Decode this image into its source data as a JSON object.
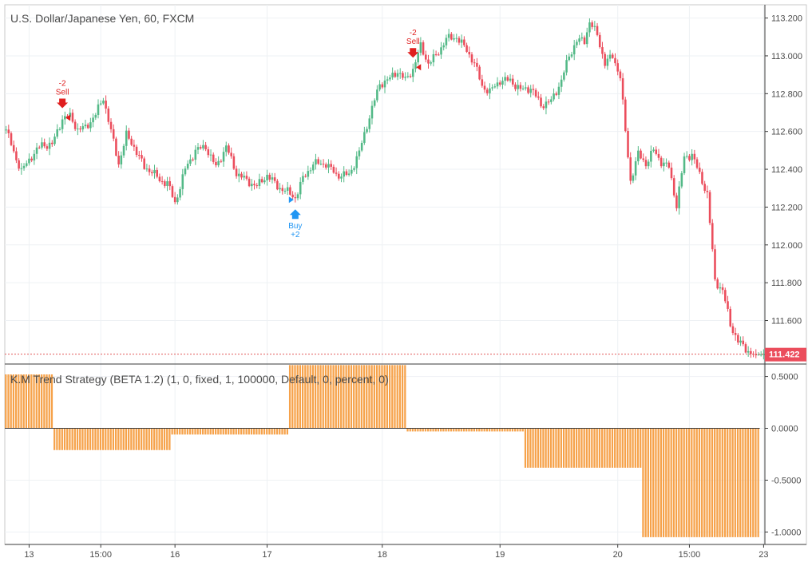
{
  "main_pane": {
    "title": "U.S. Dollar/Japanese Yen, 60, FXCM",
    "last_price_label": "111.422",
    "colors": {
      "up": "#53b987",
      "down": "#eb4d5c",
      "sell": "#e01f1f",
      "buy": "#2196f3"
    }
  },
  "strategy_pane": {
    "title": "K.M Trend Strategy (BETA 1.2) (1, 0, fixed, 1, 100000, Default, 0, percent, 0)",
    "bar_color": "#f6a24a"
  },
  "time_axis": {
    "labels": [
      {
        "text": "13",
        "bar": 9
      },
      {
        "text": "15:00",
        "bar": 37
      },
      {
        "text": "16",
        "bar": 66
      },
      {
        "text": "17",
        "bar": 102
      },
      {
        "text": "18",
        "bar": 147
      },
      {
        "text": "19",
        "bar": 193
      },
      {
        "text": "20",
        "bar": 239
      },
      {
        "text": "15:00",
        "bar": 267
      },
      {
        "text": "23",
        "bar": 296
      }
    ]
  },
  "signals": [
    {
      "type": "sell",
      "label_top": "-2",
      "label_bottom": "Sell",
      "bar": 22
    },
    {
      "type": "buy",
      "label_top": "Buy",
      "label_bottom": "+2",
      "bar": 113
    },
    {
      "type": "sell",
      "label_top": "-2",
      "label_bottom": "Sell",
      "bar": 159
    }
  ],
  "chart_data": [
    {
      "type": "candlestick",
      "title": "U.S. Dollar/Japanese Yen, 60, FXCM",
      "ylim": [
        111.37,
        113.27
      ],
      "y_ticks": [
        "113.200",
        "113.000",
        "112.800",
        "112.600",
        "112.400",
        "112.200",
        "112.000",
        "111.800",
        "111.600"
      ],
      "last_price": 111.422,
      "ohlc_keys": [
        "open",
        "high",
        "low",
        "close"
      ],
      "anchors": [
        [
          0,
          112.61
        ],
        [
          3,
          112.49
        ],
        [
          6,
          112.39
        ],
        [
          10,
          112.47
        ],
        [
          14,
          112.53
        ],
        [
          18,
          112.53
        ],
        [
          22,
          112.67
        ],
        [
          25,
          112.68
        ],
        [
          28,
          112.61
        ],
        [
          31,
          112.62
        ],
        [
          35,
          112.69
        ],
        [
          38,
          112.78
        ],
        [
          41,
          112.6
        ],
        [
          44,
          112.43
        ],
        [
          47,
          112.58
        ],
        [
          50,
          112.52
        ],
        [
          54,
          112.41
        ],
        [
          57,
          112.39
        ],
        [
          60,
          112.34
        ],
        [
          63,
          112.33
        ],
        [
          66,
          112.22
        ],
        [
          70,
          112.4
        ],
        [
          74,
          112.5
        ],
        [
          78,
          112.52
        ],
        [
          82,
          112.41
        ],
        [
          86,
          112.52
        ],
        [
          90,
          112.38
        ],
        [
          94,
          112.34
        ],
        [
          98,
          112.31
        ],
        [
          102,
          112.37
        ],
        [
          106,
          112.31
        ],
        [
          110,
          112.28
        ],
        [
          113,
          112.25
        ],
        [
          116,
          112.35
        ],
        [
          120,
          112.43
        ],
        [
          125,
          112.43
        ],
        [
          129,
          112.37
        ],
        [
          134,
          112.37
        ],
        [
          138,
          112.49
        ],
        [
          142,
          112.68
        ],
        [
          146,
          112.85
        ],
        [
          150,
          112.88
        ],
        [
          153,
          112.92
        ],
        [
          156,
          112.87
        ],
        [
          159,
          112.93
        ],
        [
          162,
          113.05
        ],
        [
          165,
          112.96
        ],
        [
          168,
          113.0
        ],
        [
          172,
          113.09
        ],
        [
          176,
          113.1
        ],
        [
          180,
          113.03
        ],
        [
          183,
          112.96
        ],
        [
          186,
          112.84
        ],
        [
          189,
          112.81
        ],
        [
          193,
          112.87
        ],
        [
          197,
          112.87
        ],
        [
          201,
          112.82
        ],
        [
          205,
          112.83
        ],
        [
          209,
          112.74
        ],
        [
          213,
          112.76
        ],
        [
          217,
          112.87
        ],
        [
          220,
          113.0
        ],
        [
          223,
          113.08
        ],
        [
          226,
          113.08
        ],
        [
          228,
          113.18
        ],
        [
          231,
          113.11
        ],
        [
          234,
          112.96
        ],
        [
          237,
          113.0
        ],
        [
          240,
          112.89
        ],
        [
          242,
          112.6
        ],
        [
          244,
          112.34
        ],
        [
          247,
          112.48
        ],
        [
          250,
          112.43
        ],
        [
          253,
          112.5
        ],
        [
          256,
          112.44
        ],
        [
          259,
          112.41
        ],
        [
          262,
          112.21
        ],
        [
          265,
          112.46
        ],
        [
          268,
          112.48
        ],
        [
          271,
          112.37
        ],
        [
          274,
          112.27
        ],
        [
          277,
          111.81
        ],
        [
          280,
          111.76
        ],
        [
          283,
          111.58
        ],
        [
          286,
          111.49
        ],
        [
          289,
          111.45
        ],
        [
          292,
          111.42
        ]
      ]
    },
    {
      "type": "bar",
      "title": "K.M Trend Strategy (BETA 1.2) (1, 0, fixed, 1, 100000, Default, 0, percent, 0)",
      "ylim": [
        -1.12,
        0.62
      ],
      "y_ticks": [
        "0.5000",
        "0.0000",
        "-0.5000",
        "-1.0000"
      ],
      "segments": [
        {
          "from_bar": 0,
          "to_bar": 18,
          "value": 0.52
        },
        {
          "from_bar": 19,
          "to_bar": 64,
          "value": -0.21
        },
        {
          "from_bar": 65,
          "to_bar": 110,
          "value": -0.06
        },
        {
          "from_bar": 111,
          "to_bar": 156,
          "value": 0.61
        },
        {
          "from_bar": 157,
          "to_bar": 202,
          "value": -0.03
        },
        {
          "from_bar": 203,
          "to_bar": 248,
          "value": -0.38
        },
        {
          "from_bar": 249,
          "to_bar": 294,
          "value": -1.05
        }
      ]
    }
  ]
}
